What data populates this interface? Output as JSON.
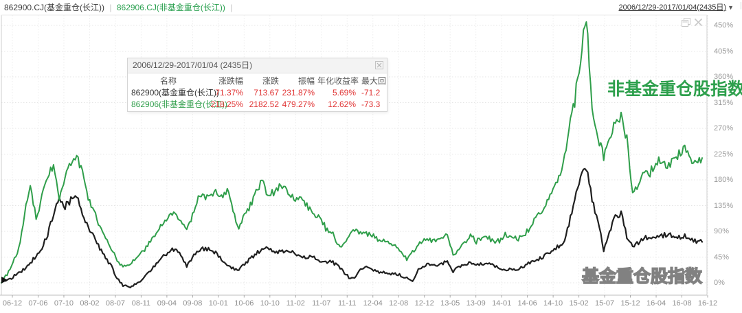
{
  "header": {
    "series_labels": [
      "862900.CJ(基金重仓(长江))",
      "862906.CJ(非基金重仓(长江))"
    ],
    "separator": "|",
    "date_range": "2006/12/29-2017/01/04(2435日)",
    "dropdown_arrow": "▼"
  },
  "tooltip": {
    "title": "2006/12/29-2017/01/04 (2435日)",
    "columns": [
      "名称",
      "涨跌幅",
      "涨跌",
      "振幅",
      "年化收益率",
      "最大回"
    ],
    "rows": [
      {
        "name": "862900(基金重仓(长江))",
        "chg_pct": "71.37%",
        "chg": "713.67",
        "amp": "231.87%",
        "ann": "5.69%",
        "mdd": "-71.2"
      },
      {
        "name": "862906(非基金重仓(长江))",
        "chg_pct": "218.25%",
        "chg": "2182.52",
        "amp": "479.27%",
        "ann": "12.62%",
        "mdd": "-73.3"
      }
    ]
  },
  "annotations": {
    "green_label": "非基金重仓股指数",
    "white_label": "基金重仓股指数"
  },
  "colors": {
    "fund_line": "#1f1f1f",
    "nonfund_line": "#2f9e4a",
    "value_red": "#e03333",
    "grid": "#e4e4e4"
  },
  "chart_data": {
    "type": "line",
    "x_start": "2006-12",
    "x_end": "2017-01",
    "x_interval": "monthly",
    "x_tick_labels": [
      "06-12",
      "07-06",
      "07-10",
      "08-02",
      "08-07",
      "08-11",
      "09-04",
      "09-08",
      "10-01",
      "10-06",
      "10-10",
      "11-02",
      "11-07",
      "11-11",
      "12-04",
      "12-08",
      "12-12",
      "13-05",
      "13-09",
      "14-01",
      "14-06",
      "14-10",
      "15-02",
      "15-07",
      "15-12",
      "16-04",
      "16-08",
      "16-12"
    ],
    "y_tick_labels": [
      "0%",
      "45%",
      "90%",
      "135%",
      "180%",
      "225%",
      "270%",
      "315%",
      "360%",
      "405%",
      "450%"
    ],
    "ylim": [
      -15,
      470
    ],
    "grid": true,
    "legend_position": "top-left",
    "series": [
      {
        "name": "862900.CJ 基金重仓(长江)",
        "color": "#1f1f1f",
        "values": [
          0,
          5,
          10,
          18,
          24,
          35,
          48,
          62,
          85,
          120,
          149,
          133,
          145,
          152,
          118,
          98,
          80,
          60,
          42,
          28,
          8,
          -5,
          -8,
          -2,
          4,
          12,
          24,
          35,
          48,
          55,
          60,
          48,
          30,
          45,
          55,
          60,
          58,
          52,
          42,
          32,
          25,
          22,
          32,
          42,
          52,
          58,
          62,
          52,
          56,
          55,
          54,
          48,
          44,
          46,
          45,
          38,
          35,
          38,
          30,
          20,
          10,
          8,
          22,
          26,
          22,
          20,
          18,
          16,
          15,
          13,
          8,
          2,
          24,
          30,
          32,
          30,
          34,
          38,
          20,
          27,
          32,
          35,
          33,
          34,
          35,
          31,
          26,
          22,
          23,
          24,
          28,
          33,
          37,
          42,
          48,
          55,
          62,
          70,
          100,
          150,
          185,
          203,
          145,
          110,
          56,
          90,
          115,
          122,
          80,
          62,
          70,
          78,
          80,
          82,
          83,
          84,
          83,
          81,
          81,
          74,
          72,
          71.4
        ]
      },
      {
        "name": "862906.CJ 非基金重仓(长江)",
        "color": "#2f9e4a",
        "values": [
          0,
          15,
          35,
          60,
          120,
          172,
          110,
          150,
          190,
          200,
          146,
          185,
          210,
          221,
          195,
          150,
          125,
          100,
          80,
          60,
          38,
          27,
          30,
          40,
          50,
          62,
          78,
          92,
          108,
          118,
          122,
          105,
          90,
          118,
          148,
          150,
          152,
          160,
          150,
          160,
          130,
          92,
          120,
          135,
          160,
          178,
          152,
          158,
          168,
          162,
          150,
          145,
          148,
          130,
          118,
          118,
          95,
          90,
          70,
          64,
          85,
          92,
          88,
          85,
          84,
          74,
          72,
          68,
          66,
          55,
          40,
          55,
          66,
          76,
          74,
          72,
          80,
          83,
          48,
          58,
          68,
          83,
          72,
          78,
          80,
          71,
          74,
          85,
          82,
          76,
          82,
          92,
          108,
          120,
          135,
          155,
          175,
          212,
          265,
          318,
          395,
          462,
          310,
          255,
          220,
          255,
          285,
          290,
          250,
          158,
          170,
          195,
          192,
          210,
          215,
          203,
          217,
          224,
          234,
          212,
          209,
          218.3
        ]
      }
    ]
  }
}
